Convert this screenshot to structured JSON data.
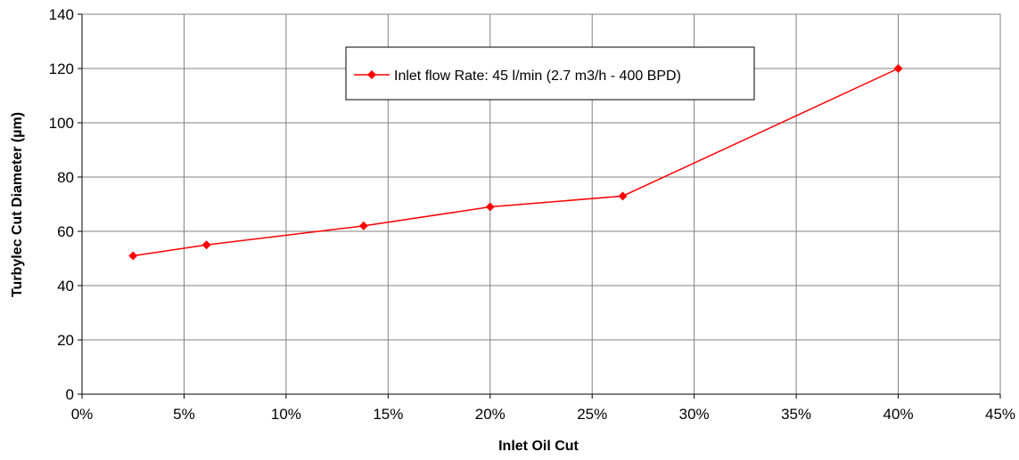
{
  "chart_data": {
    "type": "line",
    "title": "",
    "xlabel": "Inlet Oil Cut",
    "ylabel": "Turbylec Cut Diameter (µm)",
    "xlim": [
      0,
      45
    ],
    "ylim": [
      0,
      140
    ],
    "x_ticks": [
      0,
      5,
      10,
      15,
      20,
      25,
      30,
      35,
      40,
      45
    ],
    "x_tick_labels": [
      "0%",
      "5%",
      "10%",
      "15%",
      "20%",
      "25%",
      "30%",
      "35%",
      "40%",
      "45%"
    ],
    "y_ticks": [
      0,
      20,
      40,
      60,
      80,
      100,
      120,
      140
    ],
    "y_tick_labels": [
      "0",
      "20",
      "40",
      "60",
      "80",
      "100",
      "120",
      "140"
    ],
    "grid": true,
    "legend_position": "top-center",
    "series": [
      {
        "name": "Inlet flow Rate: 45 l/min (2.7 m3/h - 400 BPD)",
        "color": "#ff0000",
        "marker": "diamond",
        "points": [
          {
            "x": 2.5,
            "y": 51
          },
          {
            "x": 6.1,
            "y": 55
          },
          {
            "x": 13.8,
            "y": 62
          },
          {
            "x": 20,
            "y": 69
          },
          {
            "x": 26.5,
            "y": 73
          },
          {
            "x": 40,
            "y": 120
          }
        ]
      }
    ]
  }
}
